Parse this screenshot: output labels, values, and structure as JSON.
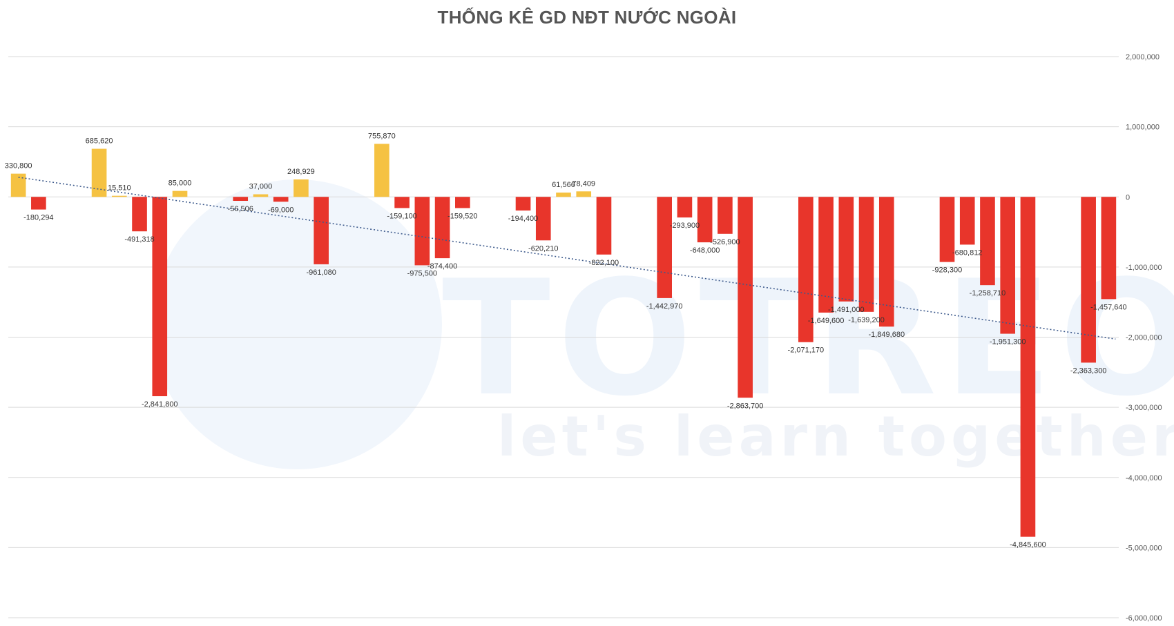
{
  "chart_data": {
    "type": "bar",
    "title": "THỐNG KÊ GD NĐT NƯỚC NGOÀI",
    "xlabel": "",
    "ylabel": "",
    "ylim": [
      -6000000,
      2000000
    ],
    "y_ticks": [
      2000000,
      1000000,
      0,
      -1000000,
      -2000000,
      -3000000,
      -4000000,
      -5000000,
      -6000000
    ],
    "y_tick_labels": [
      "2,000,000",
      "1,000,000",
      "0",
      "-1,000,000",
      "-2,000,000",
      "-3,000,000",
      "-4,000,000",
      "-5,000,000",
      "-6,000,000"
    ],
    "y_axis_position": "right",
    "grid": true,
    "legend": "none",
    "positive_color": "#f5c242",
    "negative_color": "#e8352b",
    "trendline": {
      "style": "dotted",
      "color": "#3d5a8c",
      "type": "linear"
    },
    "values": [
      330800,
      -180294,
      null,
      null,
      685620,
      15510,
      -491318,
      -2841800,
      85000,
      null,
      null,
      -56506,
      37000,
      -69000,
      248929,
      -961080,
      null,
      null,
      755870,
      -159100,
      -975500,
      -874400,
      -159520,
      null,
      null,
      -194400,
      -620210,
      61566,
      78409,
      -822100,
      null,
      null,
      -1442970,
      -293900,
      -648000,
      -526900,
      -2863700,
      null,
      null,
      -2071170,
      -1649600,
      -1491000,
      -1639200,
      -1849680,
      null,
      null,
      -928300,
      -680812,
      -1258710,
      -1951300,
      -4845600,
      null,
      null,
      -2363300,
      -1457640
    ],
    "labels": [
      "330,800",
      "-180,294",
      "",
      "",
      "685,620",
      "15,510",
      "-491,318",
      "-2,841,800",
      "85,000",
      "",
      "",
      "-56,506",
      "37,000",
      "-69,000",
      "248,929",
      "-961,080",
      "",
      "",
      "755,870",
      "-159,100",
      "-975,500",
      "-874,400",
      "-159,520",
      "",
      "",
      "-194,400",
      "-620,210",
      "61,566",
      "78,409",
      "-822,100",
      "",
      "",
      "-1,442,970",
      "-293,900",
      "-648,000",
      "-526,900",
      "-2,863,700",
      "",
      "",
      "-2,071,170",
      "-1,649,600",
      "-1,491,000",
      "-1,639,200",
      "-1,849,680",
      "",
      "",
      "-928,300",
      "-680,812",
      "-1,258,710",
      "-1,951,300",
      "-4,845,600",
      "",
      "",
      "-2,363,300",
      "-1,457,640"
    ]
  },
  "watermark": {
    "big_text": "TOTREO",
    "small_text": "let's learn together",
    "color": "#eef4fb"
  }
}
